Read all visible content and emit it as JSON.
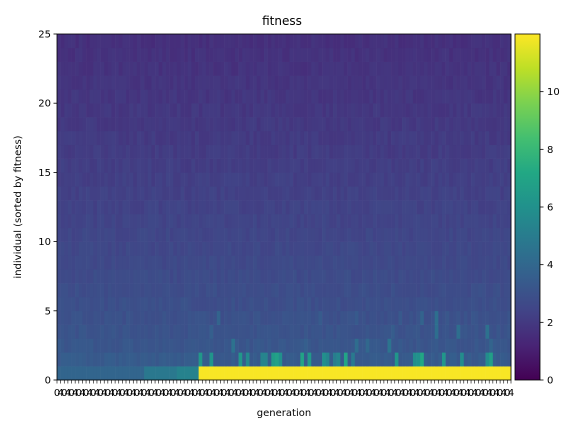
{
  "chart_data": {
    "type": "heatmap",
    "title": "fitness",
    "xlabel": "generation",
    "ylabel": "individual (sorted by fitness)",
    "x_range": [
      0,
      500
    ],
    "y_range": [
      0,
      25
    ],
    "y_ticks": [
      0,
      5,
      10,
      15,
      20,
      25
    ],
    "colorbar": {
      "colormap": "viridis",
      "range": [
        0,
        12
      ],
      "ticks": [
        0,
        2,
        4,
        6,
        8,
        10
      ]
    },
    "x_tick_labels": [
      "0",
      "4"
    ],
    "approximate_fitness_by_rank": {
      "description_levels": [
        {
          "rank_range": [
            0,
            1
          ],
          "generations_0_98": 3.9,
          "generations_98_134": 4.8,
          "generations_134_157": 5.3,
          "generations_157_500": 11.9
        },
        {
          "rank_range": [
            1,
            5
          ],
          "value": 3.4
        },
        {
          "rank_range": [
            5,
            15
          ],
          "value": 2.6
        },
        {
          "rank_range": [
            15,
            25
          ],
          "value": 1.7
        }
      ]
    },
    "grid": false,
    "legend": "none"
  }
}
